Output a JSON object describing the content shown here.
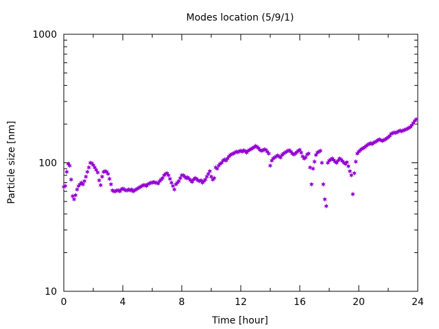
{
  "chart_data": {
    "type": "scatter",
    "title": "Modes location (5/9/1)",
    "xlabel": "Time [hour]",
    "ylabel": "Particle size [nm]",
    "xlim": [
      0,
      24
    ],
    "ylim": [
      10,
      1000
    ],
    "yscale": "log",
    "grid": false,
    "legend": "none",
    "marker_color": "#9400d3",
    "x_ticks": [
      "0",
      "4",
      "8",
      "12",
      "16",
      "20",
      "24"
    ],
    "y_ticks": [
      "10",
      "100",
      "1000"
    ],
    "points": [
      [
        0.0,
        65
      ],
      [
        0.1,
        66
      ],
      [
        0.2,
        85
      ],
      [
        0.3,
        98
      ],
      [
        0.4,
        95
      ],
      [
        0.5,
        74
      ],
      [
        0.6,
        55
      ],
      [
        0.7,
        52
      ],
      [
        0.8,
        56
      ],
      [
        0.9,
        62
      ],
      [
        1.0,
        66
      ],
      [
        1.1,
        68
      ],
      [
        1.2,
        70
      ],
      [
        1.3,
        68
      ],
      [
        1.4,
        72
      ],
      [
        1.5,
        78
      ],
      [
        1.6,
        85
      ],
      [
        1.7,
        92
      ],
      [
        1.8,
        100
      ],
      [
        1.9,
        99
      ],
      [
        2.0,
        96
      ],
      [
        2.1,
        92
      ],
      [
        2.2,
        88
      ],
      [
        2.3,
        84
      ],
      [
        2.4,
        73
      ],
      [
        2.5,
        67
      ],
      [
        2.6,
        78
      ],
      [
        2.7,
        85
      ],
      [
        2.8,
        86
      ],
      [
        2.9,
        85
      ],
      [
        3.0,
        82
      ],
      [
        3.1,
        75
      ],
      [
        3.2,
        68
      ],
      [
        3.3,
        61
      ],
      [
        3.4,
        60
      ],
      [
        3.5,
        60
      ],
      [
        3.6,
        61
      ],
      [
        3.7,
        61
      ],
      [
        3.8,
        60
      ],
      [
        3.9,
        62
      ],
      [
        4.0,
        63
      ],
      [
        4.1,
        62
      ],
      [
        4.2,
        61
      ],
      [
        4.3,
        61
      ],
      [
        4.4,
        62
      ],
      [
        4.5,
        61
      ],
      [
        4.6,
        62
      ],
      [
        4.7,
        60
      ],
      [
        4.8,
        61
      ],
      [
        4.9,
        62
      ],
      [
        5.0,
        63
      ],
      [
        5.1,
        64
      ],
      [
        5.2,
        65
      ],
      [
        5.3,
        66
      ],
      [
        5.4,
        67
      ],
      [
        5.5,
        67
      ],
      [
        5.6,
        66
      ],
      [
        5.7,
        68
      ],
      [
        5.8,
        69
      ],
      [
        5.9,
        70
      ],
      [
        6.0,
        70
      ],
      [
        6.1,
        71
      ],
      [
        6.2,
        70
      ],
      [
        6.3,
        70
      ],
      [
        6.4,
        69
      ],
      [
        6.5,
        72
      ],
      [
        6.6,
        74
      ],
      [
        6.7,
        76
      ],
      [
        6.8,
        80
      ],
      [
        6.9,
        82
      ],
      [
        7.0,
        83
      ],
      [
        7.1,
        80
      ],
      [
        7.2,
        75
      ],
      [
        7.3,
        70
      ],
      [
        7.4,
        66
      ],
      [
        7.5,
        62
      ],
      [
        7.6,
        68
      ],
      [
        7.7,
        70
      ],
      [
        7.8,
        72
      ],
      [
        7.9,
        76
      ],
      [
        8.0,
        80
      ],
      [
        8.1,
        80
      ],
      [
        8.2,
        78
      ],
      [
        8.3,
        76
      ],
      [
        8.4,
        77
      ],
      [
        8.5,
        75
      ],
      [
        8.6,
        73
      ],
      [
        8.7,
        71
      ],
      [
        8.8,
        74
      ],
      [
        8.9,
        76
      ],
      [
        9.0,
        75
      ],
      [
        9.1,
        73
      ],
      [
        9.2,
        72
      ],
      [
        9.3,
        73
      ],
      [
        9.4,
        70
      ],
      [
        9.5,
        72
      ],
      [
        9.6,
        74
      ],
      [
        9.7,
        78
      ],
      [
        9.8,
        82
      ],
      [
        9.9,
        86
      ],
      [
        10.0,
        78
      ],
      [
        10.1,
        74
      ],
      [
        10.2,
        76
      ],
      [
        10.3,
        92
      ],
      [
        10.4,
        90
      ],
      [
        10.5,
        95
      ],
      [
        10.6,
        98
      ],
      [
        10.7,
        100
      ],
      [
        10.8,
        104
      ],
      [
        10.9,
        106
      ],
      [
        11.0,
        104
      ],
      [
        11.1,
        108
      ],
      [
        11.2,
        112
      ],
      [
        11.3,
        115
      ],
      [
        11.4,
        117
      ],
      [
        11.5,
        118
      ],
      [
        11.6,
        120
      ],
      [
        11.7,
        122
      ],
      [
        11.8,
        121
      ],
      [
        11.9,
        123
      ],
      [
        12.0,
        124
      ],
      [
        12.1,
        122
      ],
      [
        12.2,
        125
      ],
      [
        12.3,
        123
      ],
      [
        12.4,
        120
      ],
      [
        12.5,
        124
      ],
      [
        12.6,
        126
      ],
      [
        12.7,
        128
      ],
      [
        12.8,
        130
      ],
      [
        12.9,
        132
      ],
      [
        13.0,
        135
      ],
      [
        13.1,
        133
      ],
      [
        13.2,
        130
      ],
      [
        13.3,
        126
      ],
      [
        13.4,
        124
      ],
      [
        13.5,
        125
      ],
      [
        13.6,
        127
      ],
      [
        13.7,
        126
      ],
      [
        13.8,
        122
      ],
      [
        13.9,
        118
      ],
      [
        14.0,
        95
      ],
      [
        14.1,
        104
      ],
      [
        14.2,
        108
      ],
      [
        14.3,
        110
      ],
      [
        14.4,
        112
      ],
      [
        14.5,
        114
      ],
      [
        14.6,
        112
      ],
      [
        14.7,
        110
      ],
      [
        14.8,
        115
      ],
      [
        14.9,
        118
      ],
      [
        15.0,
        120
      ],
      [
        15.1,
        122
      ],
      [
        15.2,
        124
      ],
      [
        15.3,
        125
      ],
      [
        15.4,
        122
      ],
      [
        15.5,
        118
      ],
      [
        15.6,
        116
      ],
      [
        15.7,
        118
      ],
      [
        15.8,
        121
      ],
      [
        15.9,
        124
      ],
      [
        16.0,
        126
      ],
      [
        16.1,
        120
      ],
      [
        16.2,
        112
      ],
      [
        16.3,
        108
      ],
      [
        16.4,
        110
      ],
      [
        16.5,
        116
      ],
      [
        16.6,
        118
      ],
      [
        16.7,
        92
      ],
      [
        16.8,
        68
      ],
      [
        16.9,
        90
      ],
      [
        17.0,
        102
      ],
      [
        17.1,
        115
      ],
      [
        17.2,
        120
      ],
      [
        17.3,
        122
      ],
      [
        17.4,
        124
      ],
      [
        17.5,
        100
      ],
      [
        17.6,
        68
      ],
      [
        17.7,
        52
      ],
      [
        17.8,
        46
      ],
      [
        17.9,
        100
      ],
      [
        18.0,
        104
      ],
      [
        18.1,
        106
      ],
      [
        18.2,
        108
      ],
      [
        18.3,
        105
      ],
      [
        18.4,
        102
      ],
      [
        18.5,
        100
      ],
      [
        18.6,
        104
      ],
      [
        18.7,
        108
      ],
      [
        18.8,
        106
      ],
      [
        18.9,
        103
      ],
      [
        19.0,
        100
      ],
      [
        19.1,
        98
      ],
      [
        19.2,
        101
      ],
      [
        19.3,
        94
      ],
      [
        19.4,
        86
      ],
      [
        19.5,
        80
      ],
      [
        19.6,
        57
      ],
      [
        19.7,
        83
      ],
      [
        19.8,
        102
      ],
      [
        19.9,
        118
      ],
      [
        20.0,
        122
      ],
      [
        20.1,
        125
      ],
      [
        20.2,
        128
      ],
      [
        20.3,
        130
      ],
      [
        20.4,
        132
      ],
      [
        20.5,
        135
      ],
      [
        20.6,
        138
      ],
      [
        20.7,
        140
      ],
      [
        20.8,
        142
      ],
      [
        20.9,
        140
      ],
      [
        21.0,
        143
      ],
      [
        21.1,
        145
      ],
      [
        21.2,
        147
      ],
      [
        21.3,
        150
      ],
      [
        21.4,
        152
      ],
      [
        21.5,
        150
      ],
      [
        21.6,
        148
      ],
      [
        21.7,
        150
      ],
      [
        21.8,
        152
      ],
      [
        21.9,
        155
      ],
      [
        22.0,
        158
      ],
      [
        22.1,
        162
      ],
      [
        22.2,
        168
      ],
      [
        22.3,
        170
      ],
      [
        22.4,
        172
      ],
      [
        22.5,
        171
      ],
      [
        22.6,
        173
      ],
      [
        22.7,
        176
      ],
      [
        22.8,
        178
      ],
      [
        22.9,
        176
      ],
      [
        23.0,
        178
      ],
      [
        23.1,
        180
      ],
      [
        23.2,
        182
      ],
      [
        23.3,
        184
      ],
      [
        23.4,
        187
      ],
      [
        23.5,
        190
      ],
      [
        23.6,
        196
      ],
      [
        23.7,
        204
      ],
      [
        23.8,
        212
      ],
      [
        23.9,
        218
      ]
    ]
  }
}
